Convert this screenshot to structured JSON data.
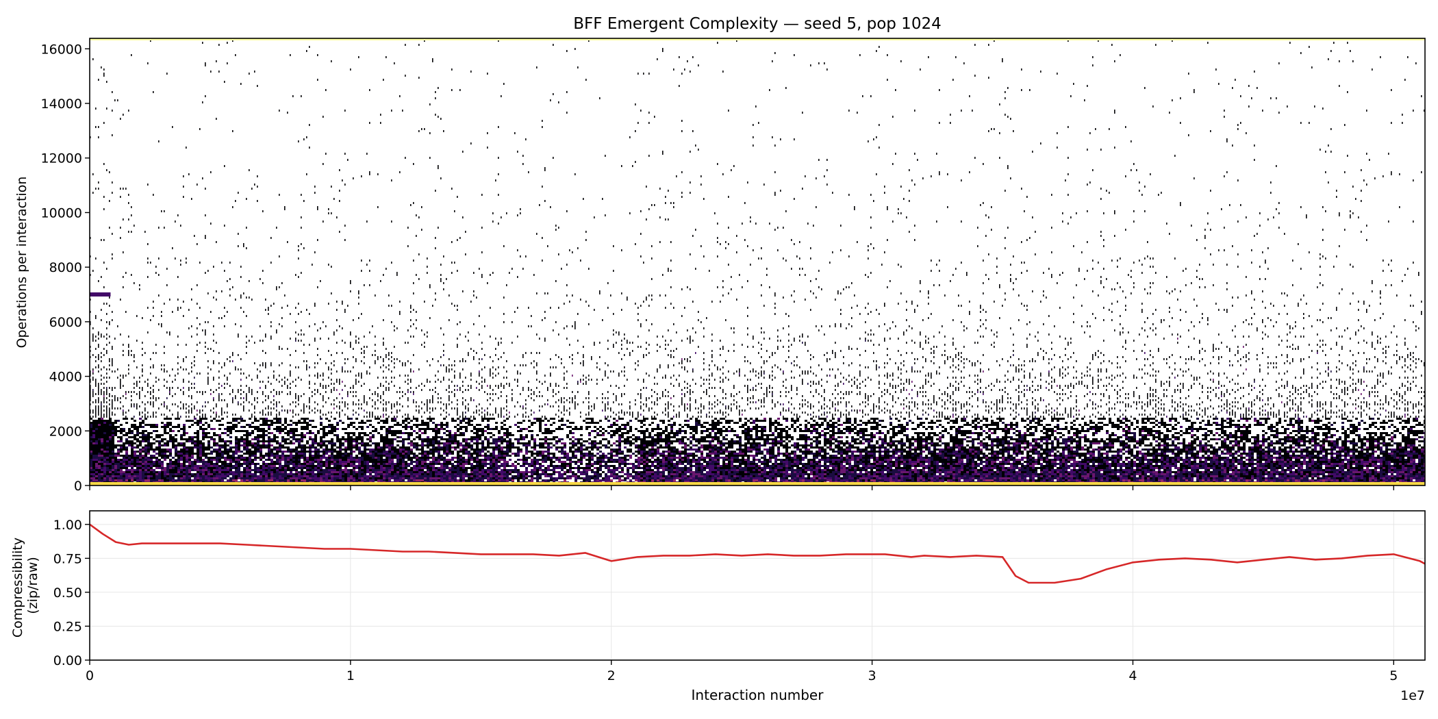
{
  "chart_data": [
    {
      "type": "heatmap",
      "title": "BFF Emergent Complexity — seed 5, pop 1024",
      "xlabel": "",
      "ylabel": "Operations per interaction",
      "xlim": [
        0,
        51200000
      ],
      "ylim": [
        0,
        16384
      ],
      "x_ticks": [
        0,
        10000000,
        20000000,
        30000000,
        40000000,
        50000000
      ],
      "y_ticks": [
        0,
        2000,
        4000,
        6000,
        8000,
        10000,
        12000,
        14000,
        16000
      ],
      "y_tick_labels": [
        "0",
        "2000",
        "4000",
        "6000",
        "8000",
        "10000",
        "12000",
        "14000",
        "16000"
      ],
      "colormap": "inferno",
      "colors": {
        "background": "#ffffff",
        "low": "#000004",
        "mid": "#420a68",
        "high": "#932667",
        "top_band": "#fcffa4",
        "bottom_band": "#f6d746"
      },
      "density_profile": [
        {
          "ops": 0,
          "density": 1.0,
          "color_level": 0.55
        },
        {
          "ops": 500,
          "density": 0.95,
          "color_level": 0.4
        },
        {
          "ops": 1000,
          "density": 0.85,
          "color_level": 0.3
        },
        {
          "ops": 1500,
          "density": 0.7,
          "color_level": 0.15
        },
        {
          "ops": 2000,
          "density": 0.5,
          "color_level": 0.08
        },
        {
          "ops": 3000,
          "density": 0.3,
          "color_level": 0.03
        },
        {
          "ops": 4000,
          "density": 0.18,
          "color_level": 0.02
        },
        {
          "ops": 6000,
          "density": 0.06,
          "color_level": 0.0
        },
        {
          "ops": 8000,
          "density": 0.03,
          "color_level": 0.0
        },
        {
          "ops": 12000,
          "density": 0.015,
          "color_level": 0.0
        },
        {
          "ops": 16384,
          "density": 0.01,
          "color_level": 0.0
        }
      ],
      "features": [
        {
          "x_range": [
            0,
            800000
          ],
          "ops": 7000,
          "note": "early persistent purple band"
        },
        {
          "x_range": [
            0,
            51200000
          ],
          "ops": 16384,
          "note": "saturated max-ops band"
        },
        {
          "x_range": [
            0,
            51200000
          ],
          "ops": 0,
          "note": "saturated min-ops band"
        }
      ],
      "grid": false
    },
    {
      "type": "line",
      "title": "",
      "xlabel": "Interaction number",
      "ylabel": "Compressibility\n(zip/raw)",
      "x_scale_label": "1e7",
      "xlim": [
        0,
        5.12
      ],
      "ylim": [
        0,
        1.1
      ],
      "x_ticks": [
        0,
        1,
        2,
        3,
        4,
        5
      ],
      "x_tick_labels": [
        "0",
        "1",
        "2",
        "3",
        "4",
        "5"
      ],
      "y_ticks": [
        0,
        0.25,
        0.5,
        0.75,
        1.0
      ],
      "y_tick_labels": [
        "0.00",
        "0.25",
        "0.50",
        "0.75",
        "1.00"
      ],
      "grid": true,
      "color": "#d62728",
      "series": [
        {
          "x": [
            0,
            0.05,
            0.1,
            0.15,
            0.2,
            0.3,
            0.4,
            0.5,
            0.6,
            0.7,
            0.8,
            0.9,
            1.0,
            1.1,
            1.2,
            1.3,
            1.4,
            1.5,
            1.6,
            1.7,
            1.8,
            1.9,
            2.0,
            2.1,
            2.2,
            2.3,
            2.4,
            2.5,
            2.6,
            2.7,
            2.8,
            2.9,
            3.0,
            3.05,
            3.1,
            3.15,
            3.2,
            3.3,
            3.4,
            3.5,
            3.55,
            3.6,
            3.7,
            3.8,
            3.9,
            4.0,
            4.1,
            4.2,
            4.3,
            4.4,
            4.5,
            4.6,
            4.7,
            4.8,
            4.9,
            5.0,
            5.1,
            5.12
          ],
          "y": [
            1.0,
            0.93,
            0.87,
            0.85,
            0.86,
            0.86,
            0.86,
            0.86,
            0.85,
            0.84,
            0.83,
            0.82,
            0.82,
            0.81,
            0.8,
            0.8,
            0.79,
            0.78,
            0.78,
            0.78,
            0.77,
            0.79,
            0.73,
            0.76,
            0.77,
            0.77,
            0.78,
            0.77,
            0.78,
            0.77,
            0.77,
            0.78,
            0.78,
            0.78,
            0.77,
            0.76,
            0.77,
            0.76,
            0.77,
            0.76,
            0.62,
            0.57,
            0.57,
            0.6,
            0.67,
            0.72,
            0.74,
            0.75,
            0.74,
            0.72,
            0.74,
            0.76,
            0.74,
            0.75,
            0.77,
            0.78,
            0.73,
            0.71
          ]
        }
      ]
    }
  ]
}
